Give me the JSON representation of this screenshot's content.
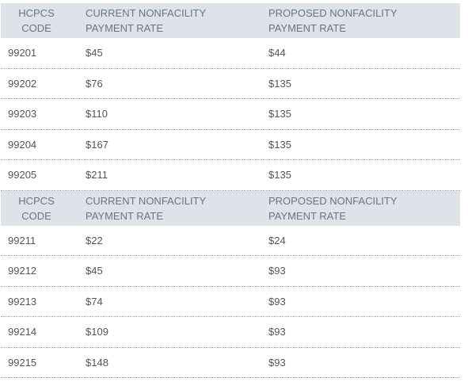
{
  "tables": [
    {
      "headers": {
        "code": [
          "HCPCS",
          "CODE"
        ],
        "current": [
          "CURRENT NONFACILITY",
          "PAYMENT RATE"
        ],
        "proposed": [
          "PROPOSED NONFACILITY",
          "PAYMENT RATE"
        ]
      },
      "rows": [
        {
          "code": "99201",
          "current": "$45",
          "proposed": "$44"
        },
        {
          "code": "99202",
          "current": "$76",
          "proposed": "$135"
        },
        {
          "code": "99203",
          "current": "$110",
          "proposed": "$135"
        },
        {
          "code": "99204",
          "current": "$167",
          "proposed": "$135"
        },
        {
          "code": "99205",
          "current": "$211",
          "proposed": "$135"
        }
      ]
    },
    {
      "headers": {
        "code": [
          "HCPCS",
          "CODE"
        ],
        "current": [
          "CURRENT NONFACILITY",
          "PAYMENT RATE"
        ],
        "proposed": [
          "PROPOSED NONFACILITY",
          "PAYMENT RATE"
        ]
      },
      "rows": [
        {
          "code": "99211",
          "current": "$22",
          "proposed": "$24"
        },
        {
          "code": "99212",
          "current": "$45",
          "proposed": "$93"
        },
        {
          "code": "99213",
          "current": "$74",
          "proposed": "$93"
        },
        {
          "code": "99214",
          "current": "$109",
          "proposed": "$93"
        },
        {
          "code": "99215",
          "current": "$148",
          "proposed": "$93"
        }
      ]
    }
  ]
}
